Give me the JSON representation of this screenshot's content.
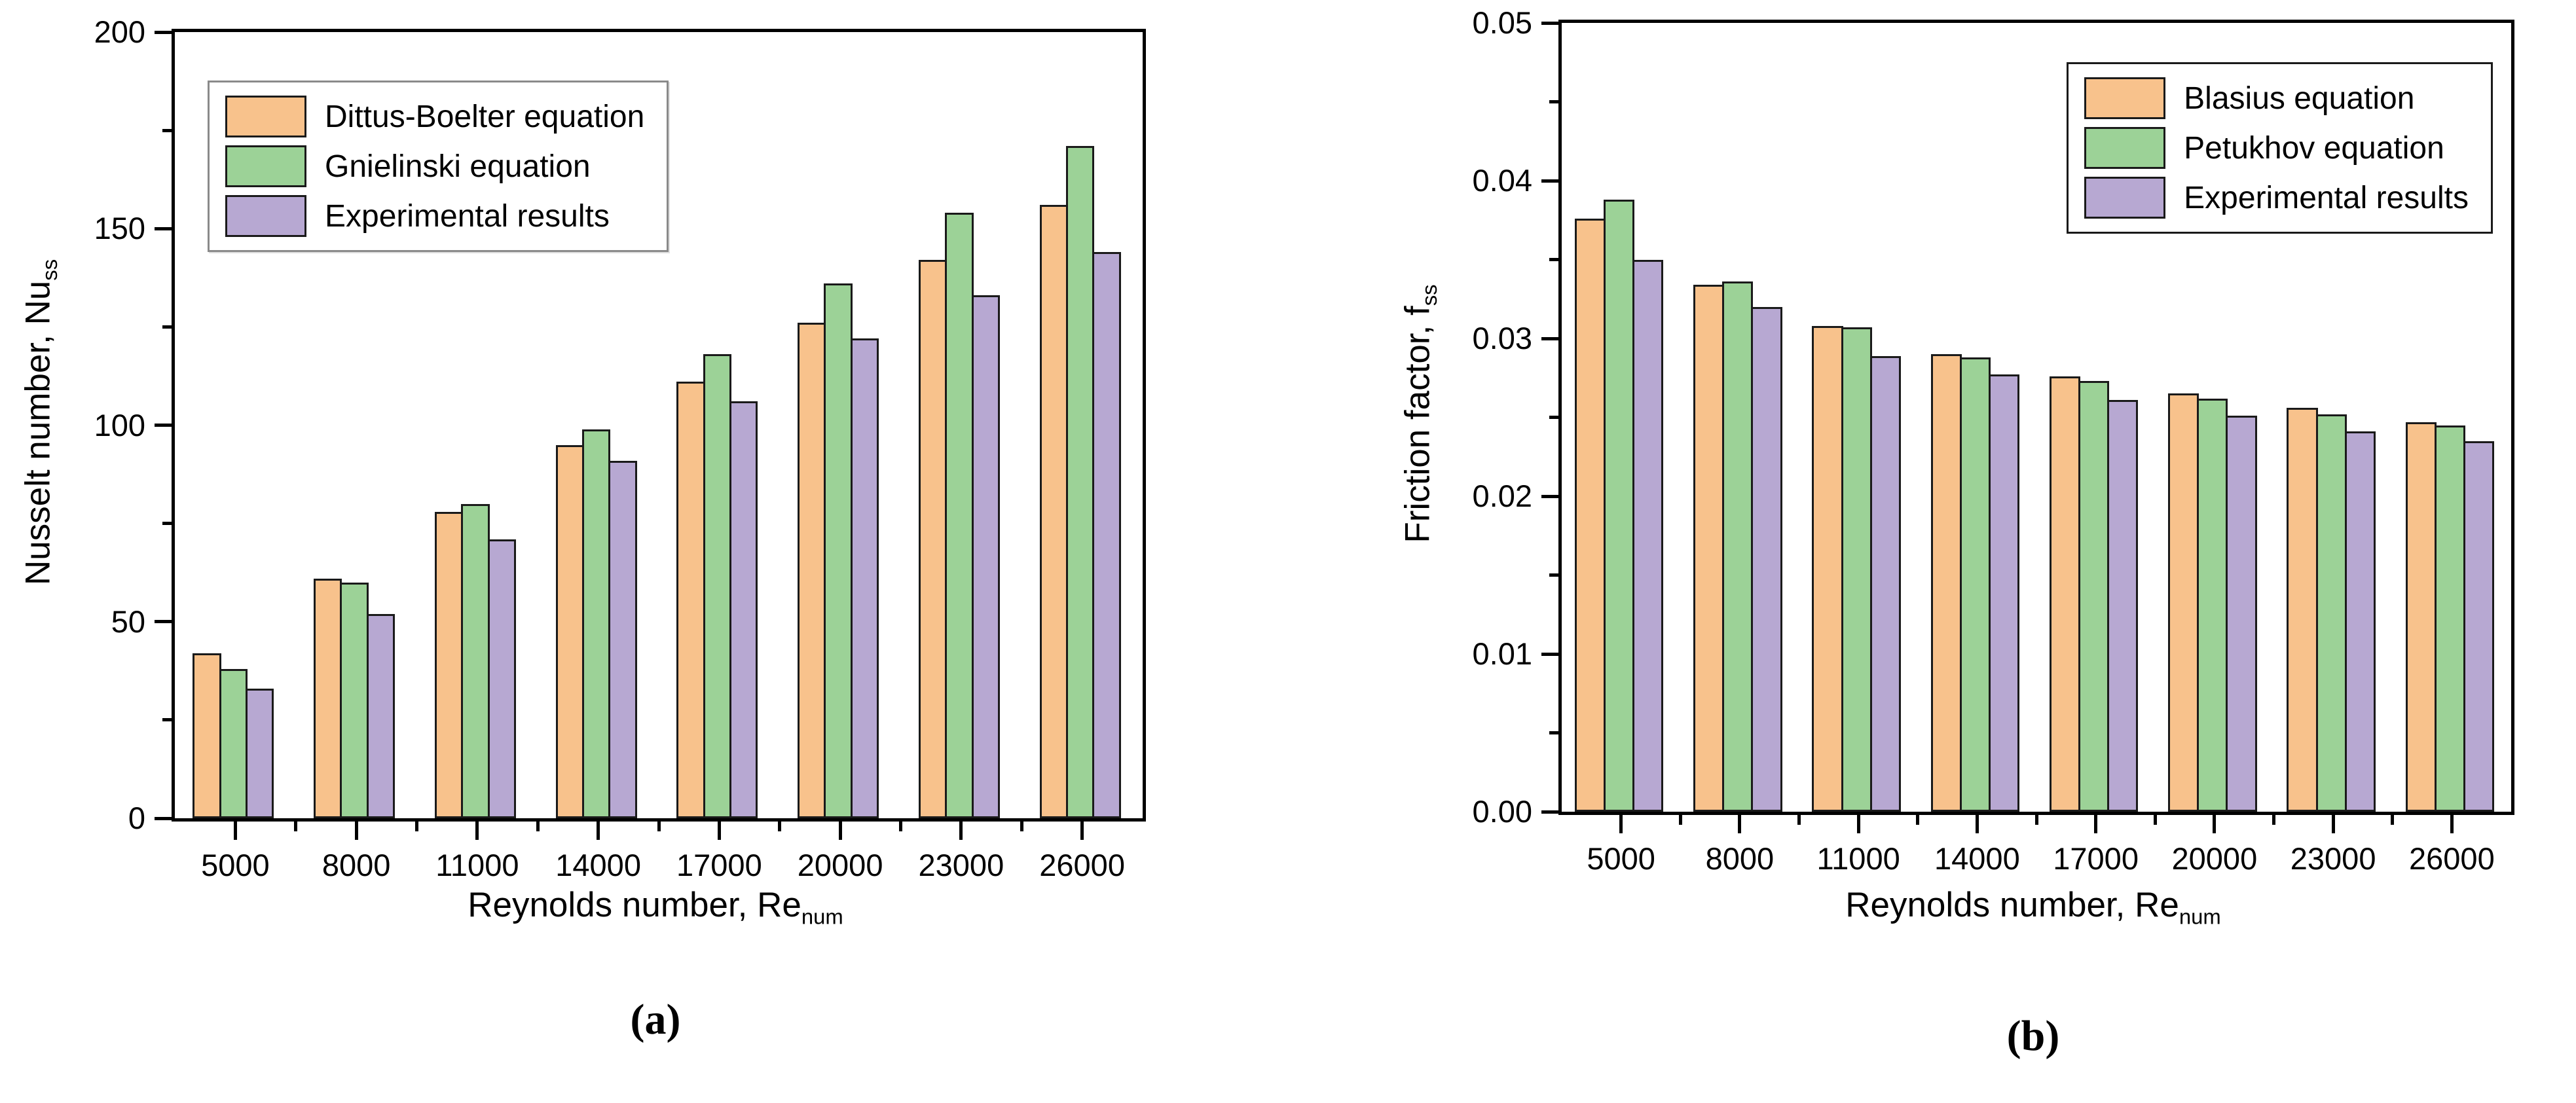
{
  "figure": {
    "caption_a": "(a)",
    "caption_b": "(b)"
  },
  "colors": {
    "series1": "#F8C28C",
    "series2": "#9CD297",
    "series3": "#B7A8D2",
    "bar_border": "#1a1a1a",
    "axis": "#000000",
    "legendA_border": "#8a8a8a",
    "legendB_border": "#1a1a1a"
  },
  "chart_data": [
    {
      "type": "bar",
      "panel": "a",
      "title": "",
      "xlabel": {
        "text": "Reynolds number, Re",
        "sub": "num"
      },
      "ylabel": {
        "text": "Nusselt number, Nu",
        "sub": "ss"
      },
      "categories": [
        "5000",
        "8000",
        "11000",
        "14000",
        "17000",
        "20000",
        "23000",
        "26000"
      ],
      "series": [
        {
          "name": "Dittus-Boelter equation",
          "color_key": "series1",
          "values": [
            42,
            61,
            78,
            95,
            111,
            126,
            142,
            156
          ]
        },
        {
          "name": "Gnielinski equation",
          "color_key": "series2",
          "values": [
            38,
            60,
            80,
            99,
            118,
            136,
            154,
            171
          ]
        },
        {
          "name": "Experimental results",
          "color_key": "series3",
          "values": [
            33,
            52,
            71,
            91,
            106,
            122,
            133,
            144
          ]
        }
      ],
      "ylim": [
        0,
        200
      ],
      "ytick_labels": [
        "0",
        "50",
        "100",
        "150",
        "200"
      ],
      "ytick_step": 50,
      "yminor_step": 25,
      "legend_position": "top-left",
      "grid": false,
      "bar_frac": 0.235
    },
    {
      "type": "bar",
      "panel": "b",
      "title": "",
      "xlabel": {
        "text": "Reynolds number, Re",
        "sub": "num"
      },
      "ylabel": {
        "text": "Friction factor, f",
        "sub": "ss"
      },
      "categories": [
        "5000",
        "8000",
        "11000",
        "14000",
        "17000",
        "20000",
        "23000",
        "26000"
      ],
      "series": [
        {
          "name": "Blasius equation",
          "color_key": "series1",
          "values": [
            0.0376,
            0.0334,
            0.0308,
            0.029,
            0.0276,
            0.0265,
            0.0256,
            0.0247
          ]
        },
        {
          "name": "Petukhov equation",
          "color_key": "series2",
          "values": [
            0.0388,
            0.0336,
            0.0307,
            0.0288,
            0.0273,
            0.0262,
            0.0252,
            0.0245
          ]
        },
        {
          "name": "Experimental results",
          "color_key": "series3",
          "values": [
            0.035,
            0.032,
            0.0289,
            0.0277,
            0.0261,
            0.0251,
            0.0241,
            0.0235
          ]
        }
      ],
      "ylim": [
        0,
        0.05
      ],
      "ytick_labels": [
        "0.00",
        "0.01",
        "0.02",
        "0.03",
        "0.04",
        "0.05"
      ],
      "ytick_step": 0.01,
      "yminor_step": 0.005,
      "legend_position": "top-right",
      "grid": false,
      "bar_frac": 0.26
    }
  ]
}
